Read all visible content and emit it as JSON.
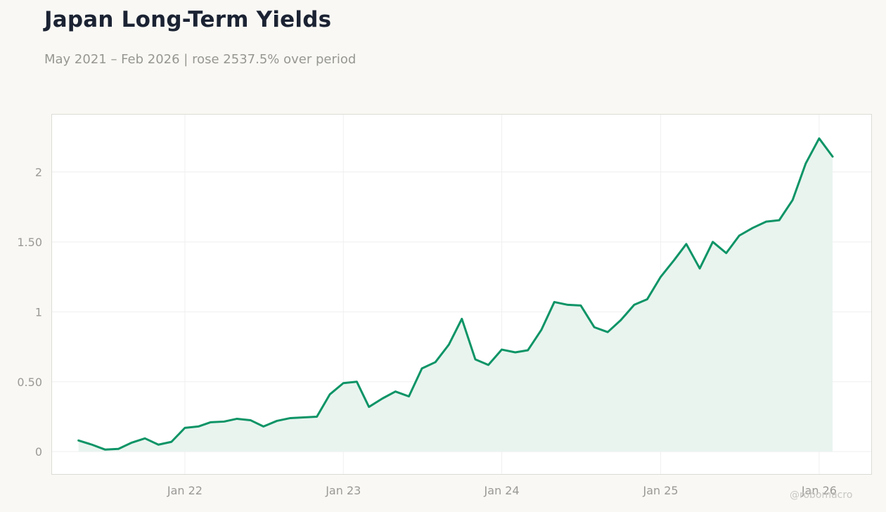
{
  "title": "Japan Long-Term Yields",
  "subtitle": "May 2021 – Feb 2026 | rose 2537.5% over period",
  "credit": "@robomacro",
  "colors": {
    "line": "#0d9466",
    "fill": "#e9f4ef",
    "background": "#f9f8f4",
    "plot_bg": "#ffffff",
    "grid": "#efefef"
  },
  "chart_data": {
    "type": "area",
    "title": "Japan Long-Term Yields",
    "subtitle": "May 2021 – Feb 2026 | rose 2537.5% over period",
    "xlabel": "",
    "ylabel": "",
    "ylim": [
      -0.16,
      2.41
    ],
    "xlim": [
      "2021-03-01",
      "2026-05-01"
    ],
    "grid": true,
    "legend": "none",
    "yticks": [
      0,
      0.5,
      1,
      1.5,
      2
    ],
    "ytick_labels": [
      "0",
      "0.50",
      "1",
      "1.50",
      "2"
    ],
    "xticks": [
      "2022-01-01",
      "2023-01-01",
      "2024-01-01",
      "2025-01-01",
      "2026-01-01"
    ],
    "xtick_labels": [
      "Jan 22",
      "Jan 23",
      "Jan 24",
      "Jan 25",
      "Jan 26"
    ],
    "series": [
      {
        "x": [
          "2021-05-01",
          "2021-06-01",
          "2021-07-01",
          "2021-08-01",
          "2021-09-01",
          "2021-10-01",
          "2021-11-01",
          "2021-12-01",
          "2022-01-01",
          "2022-02-01",
          "2022-03-01",
          "2022-04-01",
          "2022-05-01",
          "2022-06-01",
          "2022-07-01",
          "2022-08-01",
          "2022-09-01",
          "2022-10-01",
          "2022-11-01",
          "2022-12-01",
          "2023-01-01",
          "2023-02-01",
          "2023-03-01",
          "2023-04-01",
          "2023-05-01",
          "2023-06-01",
          "2023-07-01",
          "2023-08-01",
          "2023-09-01",
          "2023-10-01",
          "2023-11-01",
          "2023-12-01",
          "2024-01-01",
          "2024-02-01",
          "2024-03-01",
          "2024-04-01",
          "2024-05-01",
          "2024-06-01",
          "2024-07-01",
          "2024-08-01",
          "2024-09-01",
          "2024-10-01",
          "2024-11-01",
          "2024-12-01",
          "2025-01-01",
          "2025-02-01",
          "2025-03-01",
          "2025-04-01",
          "2025-05-01",
          "2025-06-01",
          "2025-07-01",
          "2025-08-01",
          "2025-09-01",
          "2025-10-01",
          "2025-11-01",
          "2025-12-01",
          "2026-01-01",
          "2026-02-01"
        ],
        "values": [
          0.08,
          0.05,
          0.015,
          0.02,
          0.065,
          0.095,
          0.05,
          0.07,
          0.17,
          0.18,
          0.21,
          0.215,
          0.235,
          0.225,
          0.18,
          0.22,
          0.24,
          0.245,
          0.25,
          0.41,
          0.49,
          0.5,
          0.32,
          0.38,
          0.43,
          0.395,
          0.595,
          0.64,
          0.765,
          0.95,
          0.66,
          0.62,
          0.73,
          0.71,
          0.725,
          0.87,
          1.07,
          1.05,
          1.045,
          0.89,
          0.855,
          0.94,
          1.05,
          1.09,
          1.25,
          1.37,
          1.485,
          1.31,
          1.5,
          1.42,
          1.545,
          1.6,
          1.645,
          1.655,
          1.8,
          2.06,
          2.24,
          2.11
        ]
      }
    ]
  }
}
